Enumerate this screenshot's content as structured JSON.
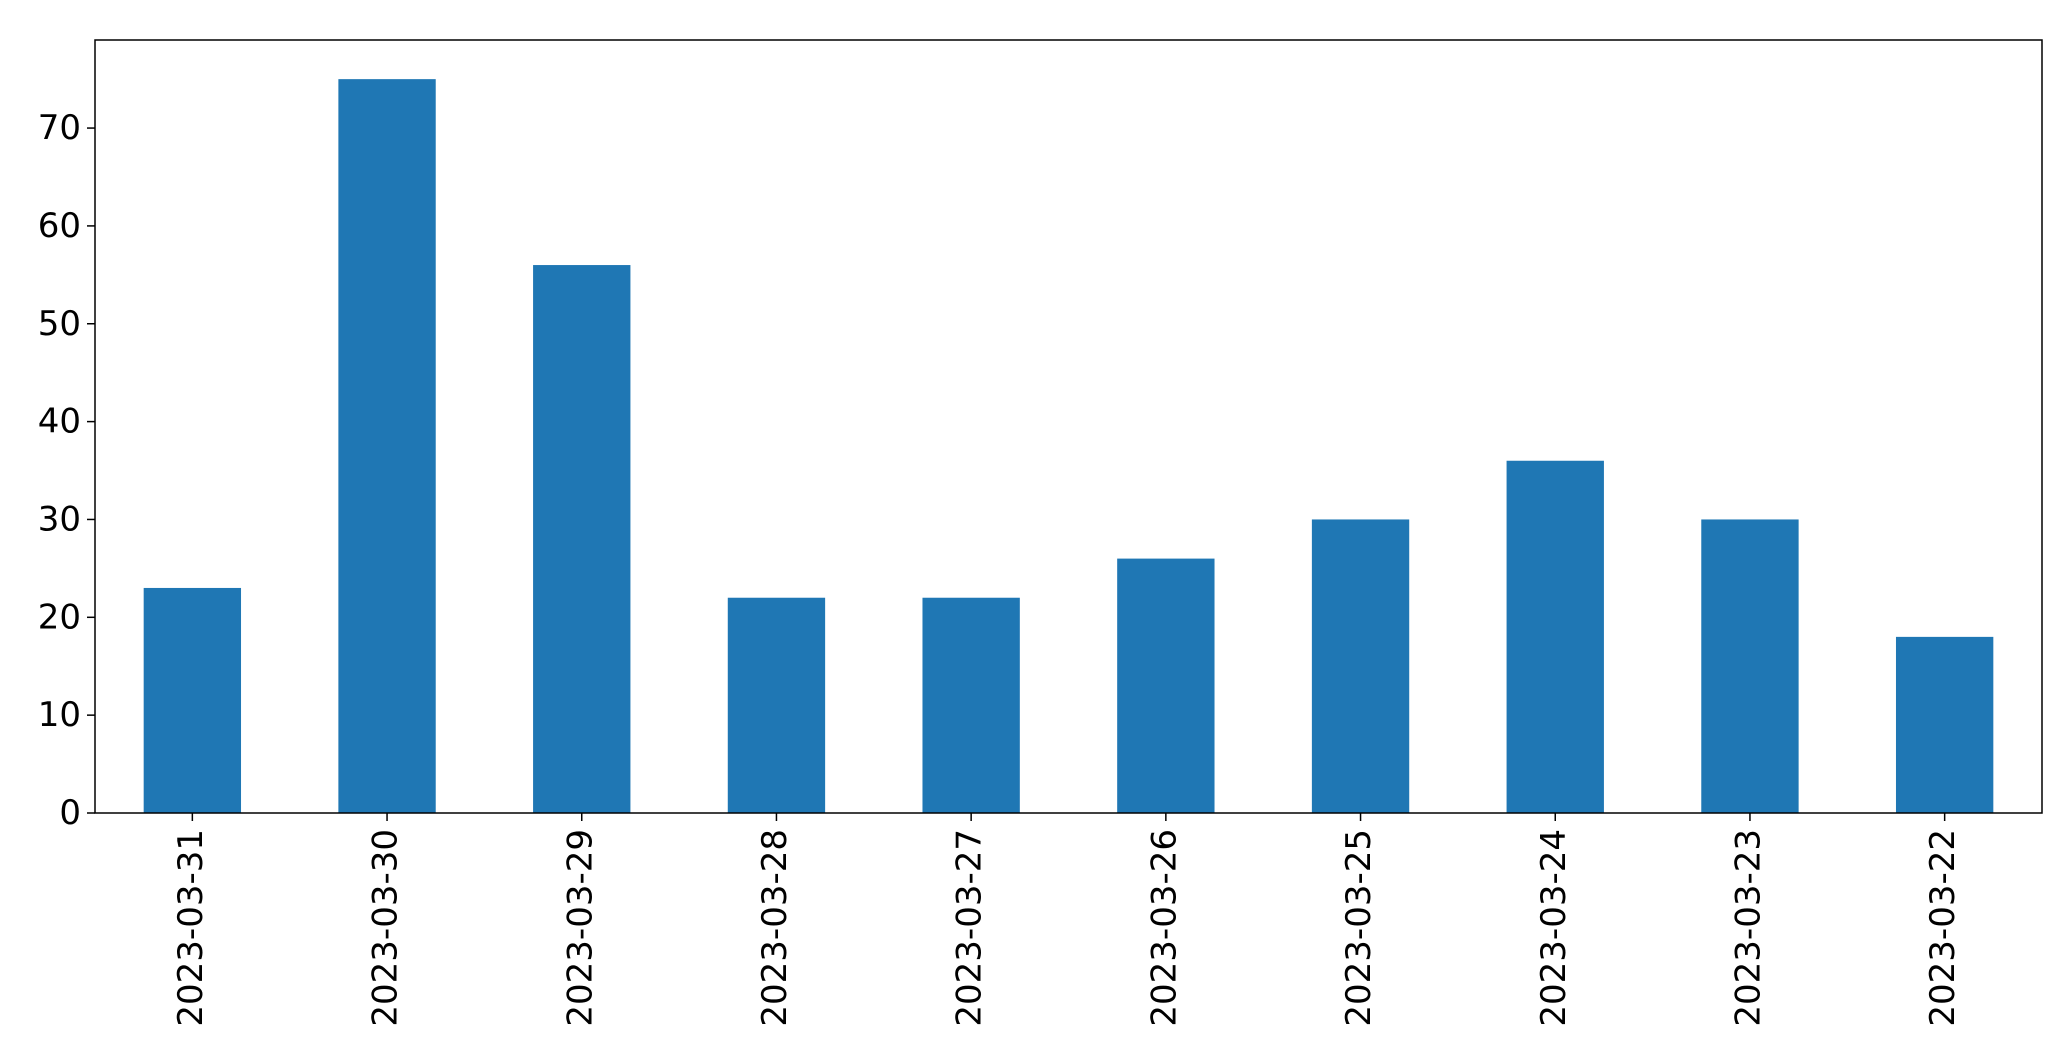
{
  "chart_data": {
    "type": "bar",
    "categories": [
      "2023-03-31",
      "2023-03-30",
      "2023-03-29",
      "2023-03-28",
      "2023-03-27",
      "2023-03-26",
      "2023-03-25",
      "2023-03-24",
      "2023-03-23",
      "2023-03-22"
    ],
    "values": [
      23,
      75,
      56,
      22,
      22,
      26,
      30,
      36,
      30,
      18
    ],
    "ylim": [
      0,
      79
    ],
    "yticks": [
      0,
      10,
      20,
      30,
      40,
      50,
      60,
      70
    ],
    "grid": false,
    "legend": "none",
    "bar_color": "#1f77b4",
    "axis_color": "#000000"
  }
}
